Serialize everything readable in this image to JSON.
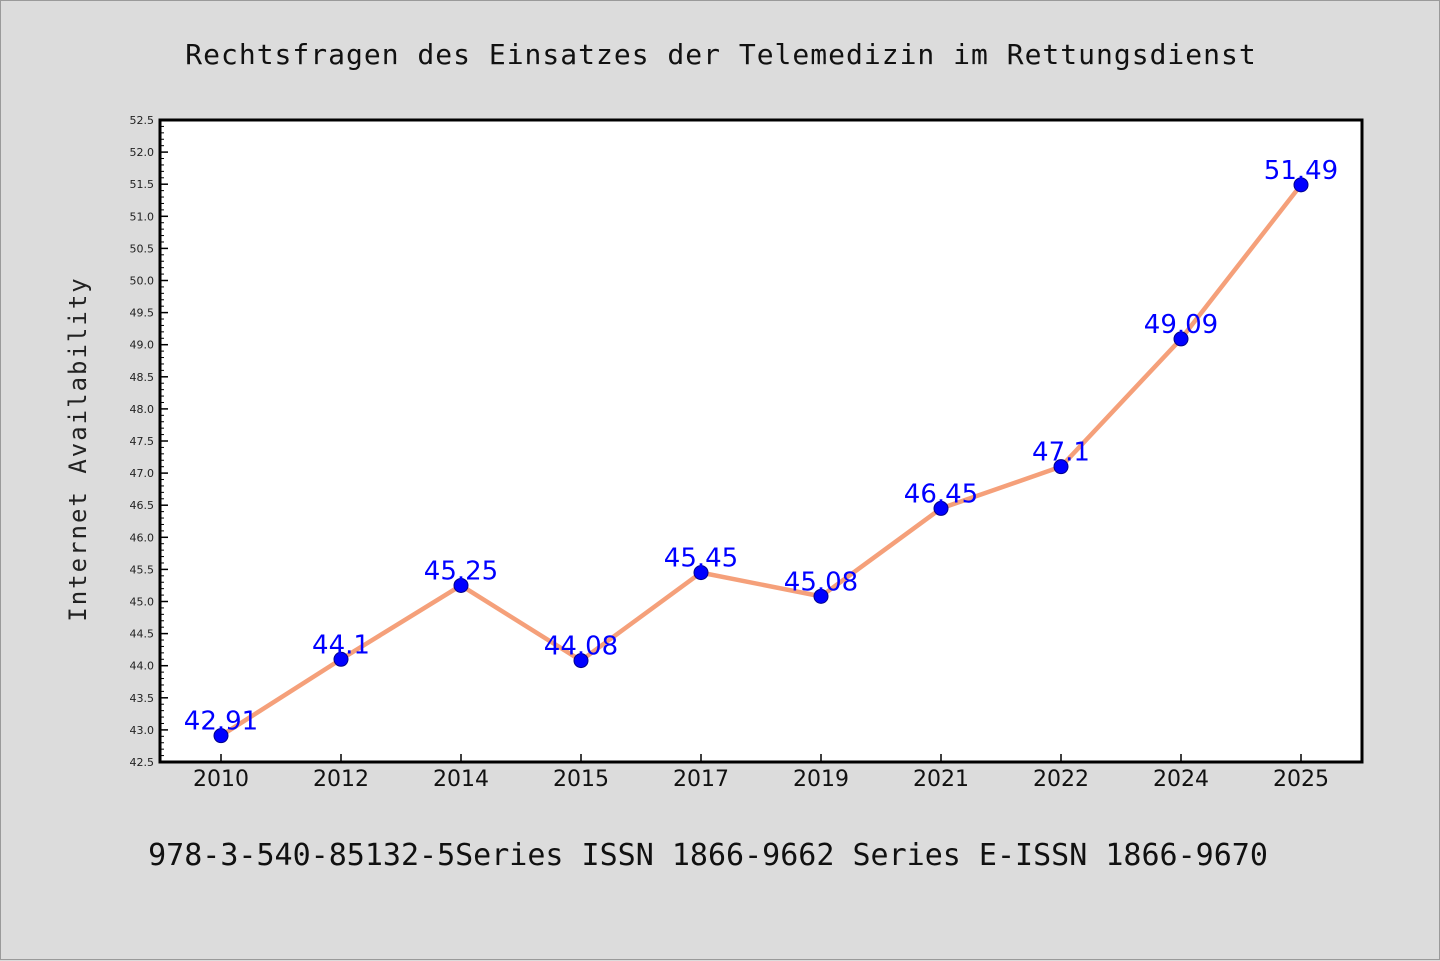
{
  "colors": {
    "background": "#dcdcdc",
    "plot_background": "#ffffff",
    "line": "#f5a07a",
    "marker": "#0000ff",
    "data_label": "#0000ff"
  },
  "footer": "978-3-540-85132-5Series ISSN 1866-9662 Series E-ISSN 1866-9670",
  "chart_data": {
    "type": "line",
    "title": "Rechtsfragen des Einsatzes der Telemedizin im Rettungsdienst",
    "xlabel": "",
    "ylabel": "Internet Availability",
    "categories": [
      "2010",
      "2012",
      "2014",
      "2015",
      "2017",
      "2019",
      "2021",
      "2022",
      "2024",
      "2025"
    ],
    "series": [
      {
        "values": [
          42.91,
          44.1,
          45.25,
          44.08,
          45.45,
          45.08,
          46.45,
          47.1,
          49.09,
          51.49
        ],
        "data_labels": [
          "42.91",
          "44.1",
          "45.25",
          "44.08",
          "45.45",
          "45.08",
          "46.45",
          "47.1",
          "49.09",
          "51.49"
        ]
      }
    ],
    "ylim": [
      42.5,
      52.5
    ],
    "yticks": [
      "42.5",
      "43.0",
      "43.5",
      "44.0",
      "44.5",
      "45.0",
      "45.5",
      "46.0",
      "46.5",
      "47.0",
      "47.5",
      "48.0",
      "48.5",
      "49.0",
      "49.5",
      "50.0",
      "50.5",
      "51.0",
      "51.5",
      "52.0",
      "52.5"
    ],
    "grid": false,
    "legend": "none"
  }
}
